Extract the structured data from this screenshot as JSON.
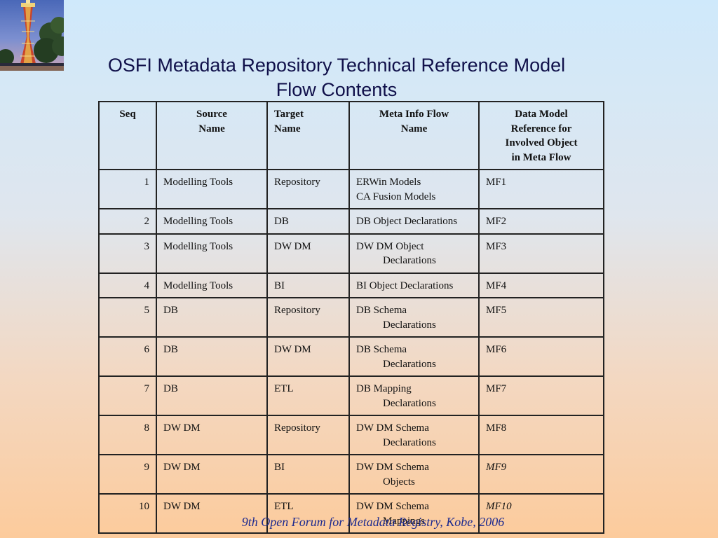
{
  "title": {
    "line1": "OSFI Metadata Repository Technical Reference Model",
    "line2": "Flow Contents"
  },
  "table": {
    "headers": {
      "seq": "Seq",
      "source_1": "Source",
      "source_2": "Name",
      "target_1": "Target",
      "target_2": "Name",
      "flow_1": "Meta Info Flow",
      "flow_2": "Name",
      "model_1": "Data Model",
      "model_2": "Reference for",
      "model_3": "Involved Object",
      "model_4": "in Meta Flow"
    },
    "rows": [
      {
        "seq": "1",
        "source": "Modelling Tools",
        "target": "Repository",
        "flow1": "ERWin Models",
        "flow2": "CA Fusion Models",
        "ref": "MF1"
      },
      {
        "seq": "2",
        "source": "Modelling Tools",
        "target": "DB",
        "flow1": "DB Object Declarations",
        "flow2": "",
        "ref": "MF2"
      },
      {
        "seq": "3",
        "source": "Modelling Tools",
        "target": "DW DM",
        "flow1": "DW DM Object",
        "flow2": "Declarations",
        "ref": "MF3"
      },
      {
        "seq": "4",
        "source": "Modelling Tools",
        "target": "BI",
        "flow1": "BI Object Declarations",
        "flow2": "",
        "ref": "MF4"
      },
      {
        "seq": "5",
        "source": "DB",
        "target": "Repository",
        "flow1": "DB Schema",
        "flow2": "Declarations",
        "ref": "MF5"
      },
      {
        "seq": "6",
        "source": "DB",
        "target": "DW DM",
        "flow1": "DB Schema",
        "flow2": "Declarations",
        "ref": "MF6"
      },
      {
        "seq": "7",
        "source": "DB",
        "target": "ETL",
        "flow1": "DB Mapping",
        "flow2": "Declarations",
        "ref": "MF7"
      },
      {
        "seq": "8",
        "source": "DW DM",
        "target": "Repository",
        "flow1": "DW DM Schema",
        "flow2": "Declarations",
        "ref": "MF8"
      },
      {
        "seq": "9",
        "source": "DW DM",
        "target": "BI",
        "flow1": "DW DM Schema",
        "flow2": "Objects",
        "ref": "MF9"
      },
      {
        "seq": "10",
        "source": "DW DM",
        "target": "ETL",
        "flow1": "DW DM Schema",
        "flow2": "Mappings",
        "ref": "MF10"
      }
    ]
  },
  "footer": "9th Open Forum for Metadata Registry, Kobe, 2006",
  "colors": {
    "title": "#10104a",
    "footer": "#1d2a8f",
    "background_top": "#cfe9fb",
    "background_bottom": "#fccb9c"
  }
}
